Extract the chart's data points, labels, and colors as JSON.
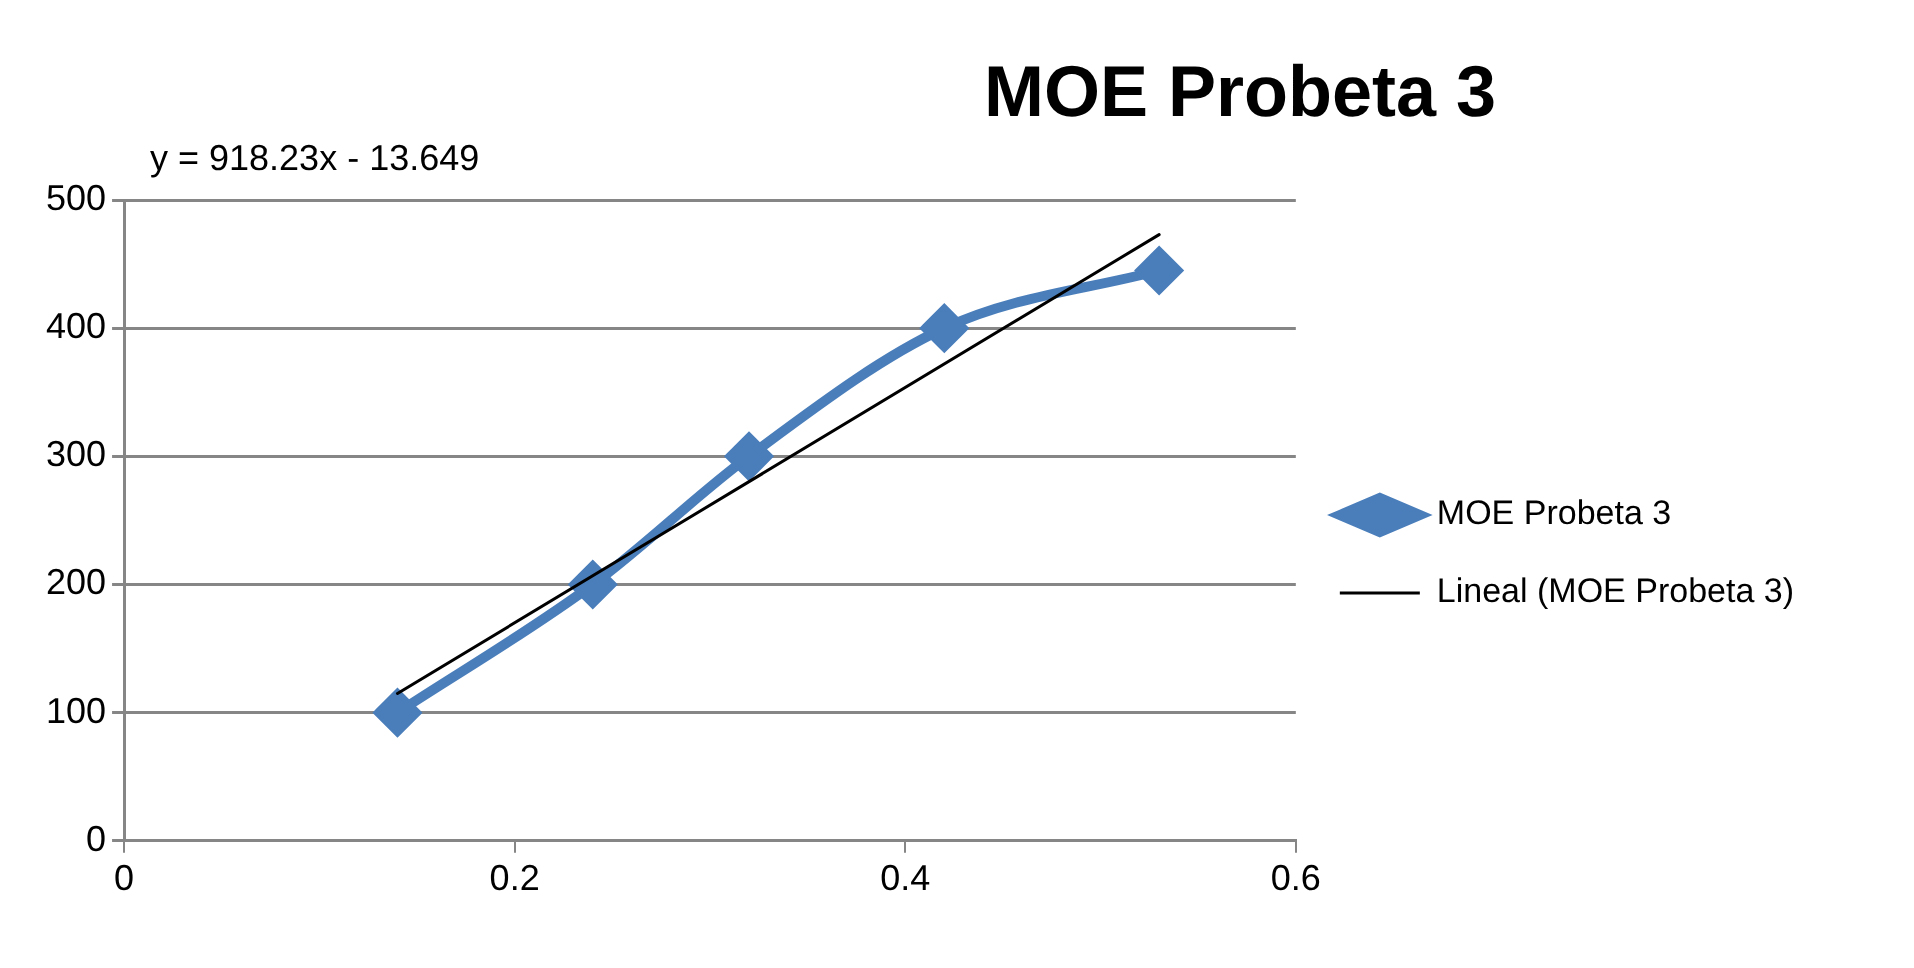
{
  "chart_data": {
    "type": "line",
    "title": "MOE Probeta 3",
    "annotations": [
      "y = 918.23x - 13.649"
    ],
    "x": [
      0.14,
      0.24,
      0.32,
      0.42,
      0.53
    ],
    "series": [
      {
        "name": "MOE Probeta 3",
        "color": "#4a7ebb",
        "values": [
          100,
          200,
          300,
          400,
          445
        ]
      },
      {
        "name": "Lineal (MOE Probeta 3)",
        "type": "line",
        "color": "#000000",
        "x": [
          0.14,
          0.53
        ],
        "values": [
          115,
          473
        ],
        "marker": "none"
      }
    ],
    "xlim": [
      0,
      0.6
    ],
    "xticks": [
      0,
      0.2,
      0.4,
      0.6
    ],
    "ylim": [
      0,
      500
    ],
    "yticks": [
      0,
      100,
      200,
      300,
      400,
      500
    ],
    "grid": "y",
    "legend": "right",
    "marker": "diamond"
  }
}
